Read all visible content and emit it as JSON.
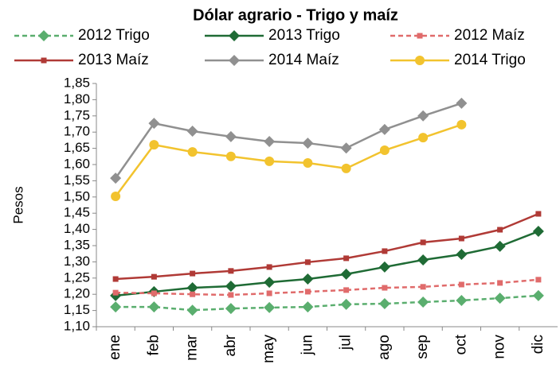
{
  "chart_data": {
    "type": "line",
    "title": "Dólar agrario  - Trigo y maíz",
    "y_label": "Pesos",
    "categories": [
      "ene",
      "feb",
      "mar",
      "abr",
      "may",
      "jun",
      "jul",
      "ago",
      "sep",
      "oct",
      "nov",
      "dic"
    ],
    "ylim": [
      1.1,
      1.85
    ],
    "yticks": [
      {
        "value": 1.1,
        "label": "1,10"
      },
      {
        "value": 1.15,
        "label": "1,15"
      },
      {
        "value": 1.2,
        "label": "1,20"
      },
      {
        "value": 1.25,
        "label": "1,25"
      },
      {
        "value": 1.3,
        "label": "1,30"
      },
      {
        "value": 1.35,
        "label": "1,35"
      },
      {
        "value": 1.4,
        "label": "1,40"
      },
      {
        "value": 1.45,
        "label": "1,45"
      },
      {
        "value": 1.5,
        "label": "1,50"
      },
      {
        "value": 1.55,
        "label": "1,55"
      },
      {
        "value": 1.6,
        "label": "1,60"
      },
      {
        "value": 1.65,
        "label": "1,65"
      },
      {
        "value": 1.7,
        "label": "1,70"
      },
      {
        "value": 1.75,
        "label": "1,75"
      },
      {
        "value": 1.8,
        "label": "1,80"
      },
      {
        "value": 1.85,
        "label": "1,85"
      }
    ],
    "grid": false,
    "legend": "top",
    "series": [
      {
        "name": "2012 Trigo",
        "color": "#5aae6e",
        "dash": true,
        "marker": "diamond",
        "values": [
          1.161,
          1.161,
          1.151,
          1.156,
          1.159,
          1.161,
          1.169,
          1.171,
          1.176,
          1.181,
          1.188,
          1.196
        ]
      },
      {
        "name": "2013 Trigo",
        "color": "#1f6b35",
        "dash": false,
        "marker": "diamond",
        "values": [
          1.196,
          1.208,
          1.22,
          1.225,
          1.237,
          1.247,
          1.262,
          1.284,
          1.306,
          1.323,
          1.348,
          1.394
        ]
      },
      {
        "name": "2012 Maíz",
        "color": "#e06b6b",
        "dash": true,
        "marker": "square",
        "values": [
          1.205,
          1.203,
          1.2,
          1.198,
          1.203,
          1.208,
          1.213,
          1.22,
          1.223,
          1.23,
          1.235,
          1.245
        ]
      },
      {
        "name": "2013 Maíz",
        "color": "#b03a36",
        "dash": false,
        "marker": "square",
        "values": [
          1.247,
          1.254,
          1.264,
          1.272,
          1.284,
          1.299,
          1.311,
          1.333,
          1.36,
          1.372,
          1.399,
          1.448
        ]
      },
      {
        "name": "2014 Maíz",
        "color": "#909090",
        "dash": false,
        "marker": "diamond",
        "values": [
          1.558,
          1.727,
          1.703,
          1.686,
          1.671,
          1.666,
          1.651,
          1.708,
          1.75,
          1.789,
          null,
          null
        ]
      },
      {
        "name": "2014 Trigo",
        "color": "#f2c32e",
        "dash": false,
        "marker": "circle",
        "values": [
          1.502,
          1.661,
          1.639,
          1.625,
          1.61,
          1.605,
          1.588,
          1.644,
          1.683,
          1.723,
          null,
          null
        ]
      }
    ]
  }
}
